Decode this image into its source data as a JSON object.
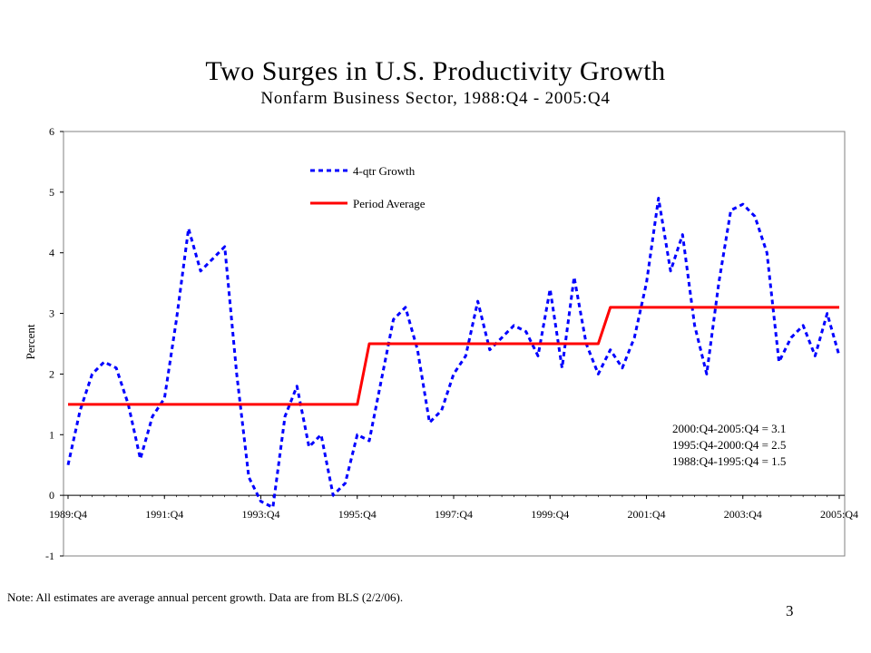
{
  "slide": {
    "note": "Note:  All estimates are average annual percent growth.   Data are from BLS (2/2/06).",
    "page_number": "3"
  },
  "chart_data": {
    "type": "line",
    "title": "Two Surges in U.S. Productivity Growth",
    "subtitle": "Nonfarm Business Sector, 1988:Q4 - 2005:Q4",
    "xlabel": "",
    "ylabel": "Percent",
    "ylim": [
      -1,
      6
    ],
    "yticks": [
      -1,
      0,
      1,
      2,
      3,
      4,
      5,
      6
    ],
    "xlim": [
      "1989:Q4",
      "2005:Q4"
    ],
    "xticks": [
      "1989:Q4",
      "1991:Q4",
      "1993:Q4",
      "1995:Q4",
      "1997:Q4",
      "1999:Q4",
      "2001:Q4",
      "2003:Q4",
      "2005:Q4"
    ],
    "legend_position": "top-left",
    "grid": false,
    "series": [
      {
        "name": "4-qtr Growth",
        "style": "dashed",
        "color": "#0000ff",
        "points": [
          [
            "1989:Q4",
            0.5
          ],
          [
            "1990:Q1",
            1.4
          ],
          [
            "1990:Q2",
            2.0
          ],
          [
            "1990:Q3",
            2.2
          ],
          [
            "1990:Q4",
            2.1
          ],
          [
            "1991:Q1",
            1.5
          ],
          [
            "1991:Q2",
            0.6
          ],
          [
            "1991:Q3",
            1.3
          ],
          [
            "1991:Q4",
            1.6
          ],
          [
            "1992:Q1",
            2.9
          ],
          [
            "1992:Q2",
            4.4
          ],
          [
            "1992:Q3",
            3.7
          ],
          [
            "1992:Q4",
            3.9
          ],
          [
            "1993:Q1",
            4.1
          ],
          [
            "1993:Q2",
            2.0
          ],
          [
            "1993:Q3",
            0.3
          ],
          [
            "1993:Q4",
            -0.1
          ],
          [
            "1994:Q1",
            -0.2
          ],
          [
            "1994:Q2",
            1.3
          ],
          [
            "1994:Q3",
            1.8
          ],
          [
            "1994:Q4",
            0.8
          ],
          [
            "1995:Q1",
            1.0
          ],
          [
            "1995:Q2",
            0.0
          ],
          [
            "1995:Q3",
            0.2
          ],
          [
            "1995:Q4",
            1.0
          ],
          [
            "1996:Q1",
            0.9
          ],
          [
            "1996:Q2",
            1.9
          ],
          [
            "1996:Q3",
            2.9
          ],
          [
            "1996:Q4",
            3.1
          ],
          [
            "1997:Q1",
            2.4
          ],
          [
            "1997:Q2",
            1.2
          ],
          [
            "1997:Q3",
            1.4
          ],
          [
            "1997:Q4",
            2.0
          ],
          [
            "1998:Q1",
            2.3
          ],
          [
            "1998:Q2",
            3.2
          ],
          [
            "1998:Q3",
            2.4
          ],
          [
            "1998:Q4",
            2.6
          ],
          [
            "1999:Q1",
            2.8
          ],
          [
            "1999:Q2",
            2.7
          ],
          [
            "1999:Q3",
            2.3
          ],
          [
            "1999:Q4",
            3.4
          ],
          [
            "2000:Q1",
            2.1
          ],
          [
            "2000:Q2",
            3.6
          ],
          [
            "2000:Q3",
            2.5
          ],
          [
            "2000:Q4",
            2.0
          ],
          [
            "2001:Q1",
            2.4
          ],
          [
            "2001:Q2",
            2.1
          ],
          [
            "2001:Q3",
            2.6
          ],
          [
            "2001:Q4",
            3.5
          ],
          [
            "2002:Q1",
            4.9
          ],
          [
            "2002:Q2",
            3.7
          ],
          [
            "2002:Q3",
            4.3
          ],
          [
            "2002:Q4",
            2.8
          ],
          [
            "2003:Q1",
            2.0
          ],
          [
            "2003:Q2",
            3.5
          ],
          [
            "2003:Q3",
            4.7
          ],
          [
            "2003:Q4",
            4.8
          ],
          [
            "2004:Q1",
            4.6
          ],
          [
            "2004:Q2",
            4.0
          ],
          [
            "2004:Q3",
            2.2
          ],
          [
            "2004:Q4",
            2.6
          ],
          [
            "2005:Q1",
            2.8
          ],
          [
            "2005:Q2",
            2.3
          ],
          [
            "2005:Q3",
            3.0
          ],
          [
            "2005:Q4",
            2.3
          ]
        ]
      },
      {
        "name": "Period Average",
        "style": "solid",
        "color": "#ff0000",
        "points": [
          [
            "1989:Q4",
            1.5
          ],
          [
            "1995:Q4",
            1.5
          ],
          [
            "1996:Q1",
            2.5
          ],
          [
            "2000:Q4",
            2.5
          ],
          [
            "2001:Q1",
            3.1
          ],
          [
            "2005:Q4",
            3.1
          ]
        ]
      }
    ],
    "annotations": [
      "2000:Q4-2005:Q4 = 3.1",
      "1995:Q4-2000:Q4 = 2.5",
      "1988:Q4-1995:Q4 = 1.5"
    ]
  }
}
